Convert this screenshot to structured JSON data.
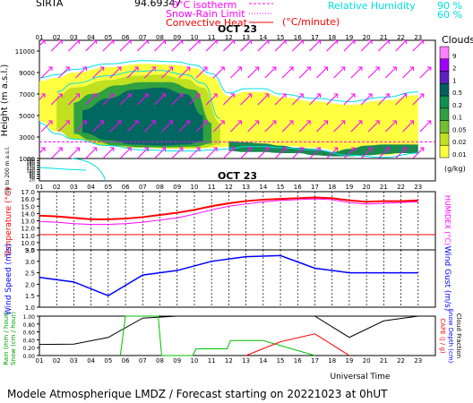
{
  "header": {
    "station": "SIRTA",
    "coords": "94.69347",
    "legend": [
      {
        "label": "0°C isotherm",
        "color": "#ff00ff"
      },
      {
        "label": "Snow-Rain Limit",
        "color": "#ff00ff"
      },
      {
        "label": "Convective Heat",
        "color": "#ff0000"
      },
      {
        "label": "(°C/minute)",
        "color": "#ff0000"
      }
    ],
    "humidity": {
      "label": "Relative Humidity",
      "v90": "90 %",
      "v60": "60 %",
      "color": "#00e0e0"
    }
  },
  "colors": {
    "temperature": "#ff0000",
    "humidex": "#ff00ff",
    "wind": "#0000ff",
    "rain": "#00c000",
    "cape": "#ff0000",
    "snow": "#000000",
    "zero_line": "#ff00ff",
    "humidity_line": "#00e0e0"
  },
  "hours": [
    "01",
    "02",
    "03",
    "04",
    "05",
    "06",
    "07",
    "08",
    "09",
    "10",
    "11",
    "12",
    "13",
    "14",
    "15",
    "16",
    "17",
    "18",
    "19",
    "20",
    "21",
    "22",
    "23"
  ],
  "date_label": "OCT 23",
  "footer": {
    "time_axis_label": "Universal Time",
    "caption": "Modele Atmospherique LMDZ / Forecast starting on 20221023 at 0hUT"
  },
  "chart_data": [
    {
      "type": "heatmap",
      "name_printed": "",
      "ylabel": "Height (m a.s.l.)",
      "ylabel_low": "Up to 200 m a.s.l.",
      "yticks_upper": [
        11000,
        9000,
        7000,
        5000,
        3000,
        1000
      ],
      "yticks_lower": [
        200,
        180,
        160,
        140,
        120,
        100,
        80,
        60,
        40,
        20
      ],
      "ylim_upper": [
        1000,
        12000
      ],
      "colorbar_title": "Clouds",
      "colorbar_unit": "(g/kg)",
      "colorbar_ticks": [
        "9",
        "2",
        "1",
        "0.5",
        "0.2",
        "0.1",
        "0.05",
        "0.02",
        "0.01"
      ],
      "colorbar_colors": [
        "#ff80ff",
        "#a000ff",
        "#6020c0",
        "#006060",
        "#109050",
        "#30a040",
        "#70c030",
        "#c0e020",
        "#ffff40"
      ],
      "cloud_layers": [
        {
          "level": "0.01",
          "x": [
            1,
            2,
            3,
            5,
            7,
            9,
            10,
            11,
            12,
            13,
            14,
            15,
            17,
            19,
            21,
            23
          ],
          "top": [
            8200,
            8500,
            9000,
            9500,
            9800,
            9700,
            9400,
            8600,
            6800,
            7200,
            7200,
            6700,
            6300,
            6000,
            6400,
            6900
          ],
          "base": [
            4500,
            3500,
            3000,
            2400,
            2000,
            1900,
            1900,
            2000,
            2100,
            2300,
            2300,
            2200,
            2000,
            1500,
            1300,
            1700
          ]
        },
        {
          "level": "0.05",
          "x": [
            2,
            3,
            5,
            6.5,
            8,
            9.5,
            10.5,
            11.5
          ],
          "top": [
            6800,
            7600,
            8300,
            8700,
            8800,
            8400,
            7600,
            4300
          ],
          "base": [
            3600,
            2800,
            2200,
            2000,
            1950,
            1950,
            2000,
            2300
          ]
        },
        {
          "level": "0.2",
          "x": [
            3,
            4,
            5.5,
            7,
            8.5,
            10,
            11
          ],
          "top": [
            6200,
            7000,
            7800,
            8100,
            8100,
            7400,
            4300
          ],
          "base": [
            3300,
            2700,
            2200,
            2050,
            2050,
            2100,
            2400
          ]
        },
        {
          "level": "0.5",
          "x": [
            3.5,
            5,
            6.5,
            8,
            9.5,
            10.5
          ],
          "top": [
            5500,
            6600,
            7400,
            7600,
            7000,
            5000
          ],
          "base": [
            3400,
            2700,
            2300,
            2200,
            2300,
            2600
          ]
        },
        {
          "level": "0.5-low",
          "x": [
            12,
            13,
            14,
            15,
            16,
            17,
            18,
            19,
            20,
            21,
            22,
            23
          ],
          "top": [
            2600,
            2500,
            2400,
            2200,
            2000,
            1900,
            1600,
            1900,
            2200,
            2300,
            2300,
            2300
          ],
          "base": [
            1700,
            1600,
            1600,
            1500,
            1500,
            1300,
            1200,
            1200,
            1300,
            1400,
            1500,
            1500
          ]
        }
      ],
      "zero_isotherm_m": 2550,
      "wind_barbs": "magenta arrows pointing north-east at every hour"
    },
    {
      "type": "line",
      "ylabel": "Temperature (°C)",
      "ylabel_right": "HUMIDEX (°C)",
      "yticks": [
        9.0,
        10.0,
        11.0,
        12.0,
        13.0,
        14.0,
        15.0,
        16.0,
        17.0
      ],
      "ylim": [
        9.0,
        17.0
      ],
      "x": [
        1,
        2,
        3,
        4,
        5,
        6,
        7,
        8,
        9,
        10,
        11,
        12,
        13,
        14,
        15,
        16,
        17,
        18,
        19,
        20,
        21,
        22,
        23
      ],
      "series": [
        {
          "name": "Temperature",
          "values": [
            13.7,
            13.6,
            13.4,
            13.2,
            13.2,
            13.3,
            13.5,
            13.8,
            14.1,
            14.5,
            15.0,
            15.4,
            15.7,
            15.9,
            16.0,
            16.1,
            16.2,
            16.1,
            15.8,
            15.6,
            15.7,
            15.7,
            15.8
          ]
        },
        {
          "name": "Humidex",
          "values": [
            12.9,
            12.8,
            12.6,
            12.5,
            12.5,
            12.6,
            12.8,
            13.1,
            13.4,
            13.9,
            14.5,
            15.0,
            15.3,
            15.6,
            15.8,
            15.9,
            16.0,
            15.9,
            15.5,
            15.3,
            15.4,
            15.5,
            15.6
          ]
        }
      ],
      "reference_line": 11.1
    },
    {
      "type": "line",
      "ylabel": "Wind Speed (m/s)",
      "ylabel_right": "Wind Gust (m/s)",
      "yticks": [
        1.0,
        1.5,
        2.0,
        2.5,
        3.0,
        3.5
      ],
      "ylim": [
        1.0,
        3.5
      ],
      "x": [
        1,
        3,
        5,
        7,
        9,
        11,
        13,
        15,
        17,
        19,
        21,
        23
      ],
      "series": [
        {
          "name": "Wind Speed",
          "values": [
            2.3,
            2.1,
            1.5,
            2.4,
            2.6,
            3.0,
            3.2,
            3.25,
            2.7,
            2.5,
            2.5,
            2.5
          ]
        }
      ]
    },
    {
      "type": "line",
      "ylabel": "Rain (mm / hour)",
      "ylabel2": "Snow (cm / hour)",
      "ylabel_right": "CAPE (J / g)",
      "ylabel_right2": "Snow Depth (cm)",
      "ylabel_right3": "Cloud Fraction",
      "yticks": [
        0.0,
        0.2,
        0.4,
        0.6,
        0.8,
        1.0
      ],
      "ylim": [
        0.0,
        1.0
      ],
      "series": [
        {
          "name": "Cloud Fraction",
          "x": [
            1,
            3,
            5,
            7,
            9,
            11,
            13,
            15,
            17,
            19,
            21,
            23
          ],
          "values": [
            0.28,
            0.29,
            0.46,
            0.95,
            1.0,
            1.0,
            1.0,
            1.0,
            1.0,
            0.46,
            0.88,
            1.0
          ]
        },
        {
          "name": "Rain",
          "x": [
            5.7,
            6.0,
            7.0,
            7.9,
            8.1,
            9.9,
            10.1,
            11.9,
            12.1,
            14.0,
            17.0
          ],
          "values": [
            0.0,
            1.0,
            1.0,
            1.0,
            0.0,
            0.0,
            0.17,
            0.17,
            0.38,
            0.38,
            0.0
          ]
        },
        {
          "name": "CAPE",
          "x": [
            13,
            15,
            17,
            19
          ],
          "values": [
            0.0,
            0.35,
            0.55,
            0.0
          ]
        }
      ]
    }
  ]
}
